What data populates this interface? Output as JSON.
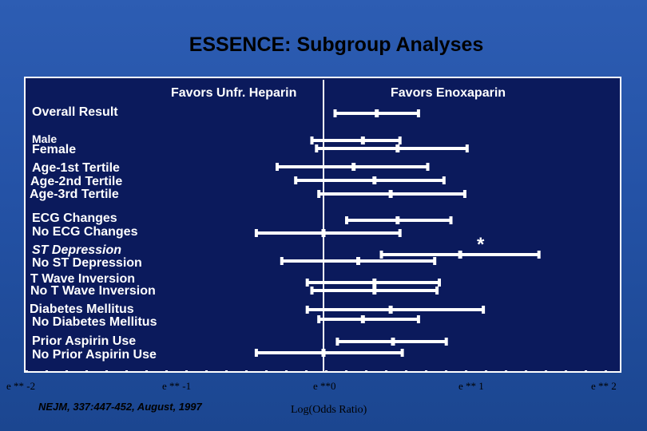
{
  "title": "ESSENCE:  Subgroup Analyses",
  "citation": "NEJM, 337:447-452, August, 1997",
  "chart_data": {
    "type": "forest",
    "header_left": "Favors Unfr. Heparin",
    "header_right": "Favors Enoxaparin",
    "xlabel": "Log(Odds Ratio)",
    "xlim": [
      -2,
      2
    ],
    "x_ticks": [
      "e ** -2",
      "e ** -1",
      "e **0",
      "e ** 1",
      "e ** 2"
    ],
    "reference_line": 0,
    "significance_marker": "*",
    "rows": [
      {
        "label": "Overall Result",
        "lower": 0.05,
        "estimate": 0.23,
        "upper": 0.41
      },
      {
        "label": "Male",
        "lower": -0.05,
        "estimate": 0.17,
        "upper": 0.33
      },
      {
        "label": "Female",
        "lower": -0.03,
        "estimate": 0.32,
        "upper": 0.62
      },
      {
        "label": "Age-1st Tertile",
        "lower": -0.2,
        "estimate": 0.13,
        "upper": 0.45
      },
      {
        "label": "Age-2nd Tertile",
        "lower": -0.12,
        "estimate": 0.22,
        "upper": 0.52
      },
      {
        "label": "Age-3rd Tertile",
        "lower": -0.02,
        "estimate": 0.29,
        "upper": 0.61
      },
      {
        "label": "ECG Changes",
        "lower": 0.1,
        "estimate": 0.32,
        "upper": 0.55
      },
      {
        "label": "No ECG Changes",
        "lower": -0.29,
        "estimate": 0.0,
        "upper": 0.33
      },
      {
        "label": "ST Depression",
        "lower": 0.25,
        "estimate": 0.59,
        "upper": 0.93,
        "italic": true,
        "significant": true
      },
      {
        "label": "No ST Depression",
        "lower": -0.18,
        "estimate": 0.15,
        "upper": 0.48
      },
      {
        "label": "T Wave Inversion",
        "lower": -0.07,
        "estimate": 0.22,
        "upper": 0.5
      },
      {
        "label": "No T Wave Inversion",
        "lower": -0.05,
        "estimate": 0.22,
        "upper": 0.49
      },
      {
        "label": "Diabetes Mellitus",
        "lower": -0.07,
        "estimate": 0.29,
        "upper": 0.69
      },
      {
        "label": "No Diabetes Mellitus",
        "lower": -0.02,
        "estimate": 0.17,
        "upper": 0.41
      },
      {
        "label": "Prior Aspirin Use",
        "lower": 0.06,
        "estimate": 0.3,
        "upper": 0.53
      },
      {
        "label": "No Prior Aspirin Use",
        "lower": -0.29,
        "estimate": 0.0,
        "upper": 0.34
      }
    ]
  }
}
